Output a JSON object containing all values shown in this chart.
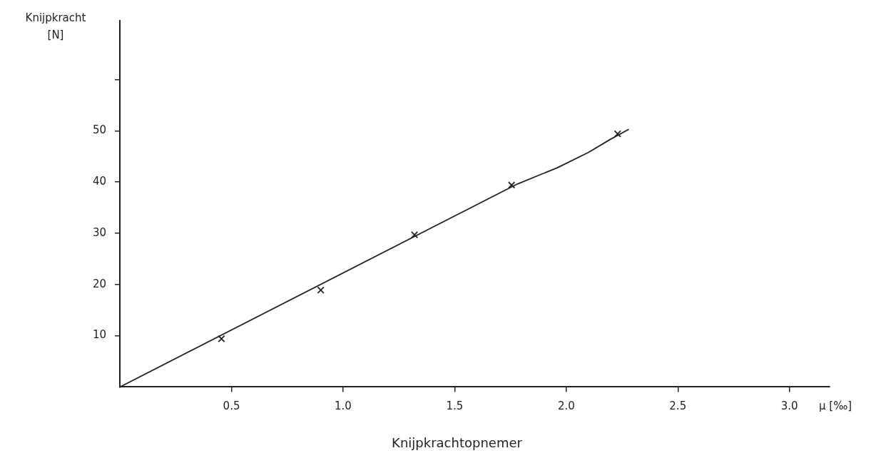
{
  "chart_data": {
    "type": "scatter",
    "title": "Knijpkrachtopnemer",
    "xlabel": "μ [‰]",
    "ylabel": "Knijpkracht [N]",
    "xlim": [
      0,
      3.18
    ],
    "ylim": [
      0,
      71.5
    ],
    "xticks": [
      0.5,
      {
        "value": 1,
        "label": "1.0"
      },
      1.5,
      {
        "value": 2,
        "label": "2.0"
      },
      2.5,
      {
        "value": 3,
        "label": "3.0"
      }
    ],
    "yticks": [
      10,
      20,
      30,
      40,
      50,
      {
        "value": 60,
        "label": null
      }
    ],
    "grid": false,
    "legend": false,
    "series": [
      {
        "marker": "cross",
        "color": "#222222",
        "x": [
          0.455,
          0.9,
          1.32,
          1.755,
          2.23
        ],
        "values": [
          9.4,
          18.9,
          29.7,
          39.4,
          49.4
        ]
      },
      {
        "type": "line",
        "marker": "none",
        "line_style": "solid",
        "color": "#222222",
        "x": [
          0,
          1.78,
          1.96,
          2.1,
          2.2,
          2.28
        ],
        "values": [
          0,
          39.6,
          42.8,
          45.8,
          48.4,
          50.3
        ]
      }
    ]
  }
}
